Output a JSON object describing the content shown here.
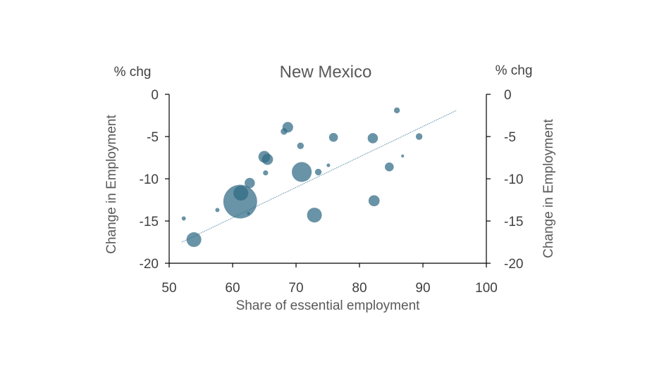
{
  "chart_data": {
    "type": "scatter",
    "title": "New Mexico",
    "xlabel": "Share of essential employment",
    "ylabel": "Change in Employment",
    "y2label": "Change in Employment",
    "yunit": "% chg",
    "y2unit": "% chg",
    "xlim": [
      50,
      100
    ],
    "ylim": [
      -20,
      0
    ],
    "xticks": [
      "50",
      "60",
      "70",
      "80",
      "90",
      "100"
    ],
    "yticks": [
      "0",
      "-5",
      "-10",
      "-15",
      "-20"
    ],
    "grid": false,
    "bubble_color": "#2f6a84",
    "trendline": {
      "x": [
        52,
        95.3
      ],
      "y": [
        -17.5,
        -1.9
      ],
      "color": "#5a8fa8"
    },
    "points": [
      {
        "x": 52.3,
        "y": -14.7,
        "size": 2
      },
      {
        "x": 53.9,
        "y": -17.2,
        "size": 25
      },
      {
        "x": 57.6,
        "y": -13.7,
        "size": 2
      },
      {
        "x": 61.2,
        "y": -12.7,
        "size": 130
      },
      {
        "x": 61.3,
        "y": -11.7,
        "size": 25
      },
      {
        "x": 62.5,
        "y": -14.1,
        "size": 1
      },
      {
        "x": 62.7,
        "y": -10.5,
        "size": 12
      },
      {
        "x": 65.0,
        "y": -7.4,
        "size": 16
      },
      {
        "x": 65.2,
        "y": -9.3,
        "size": 3
      },
      {
        "x": 65.5,
        "y": -7.7,
        "size": 14
      },
      {
        "x": 68.1,
        "y": -4.4,
        "size": 5
      },
      {
        "x": 68.7,
        "y": -3.9,
        "size": 13
      },
      {
        "x": 70.7,
        "y": -6.1,
        "size": 5
      },
      {
        "x": 70.9,
        "y": -9.2,
        "size": 45
      },
      {
        "x": 72.9,
        "y": -14.3,
        "size": 25
      },
      {
        "x": 73.5,
        "y": -9.2,
        "size": 5
      },
      {
        "x": 75.1,
        "y": -8.4,
        "size": 1.5
      },
      {
        "x": 75.9,
        "y": -5.1,
        "size": 9
      },
      {
        "x": 82.1,
        "y": -5.2,
        "size": 12
      },
      {
        "x": 82.3,
        "y": -12.6,
        "size": 14
      },
      {
        "x": 84.7,
        "y": -8.6,
        "size": 9
      },
      {
        "x": 85.9,
        "y": -1.9,
        "size": 4
      },
      {
        "x": 86.8,
        "y": -7.3,
        "size": 1
      },
      {
        "x": 89.4,
        "y": -5.0,
        "size": 5
      }
    ]
  }
}
